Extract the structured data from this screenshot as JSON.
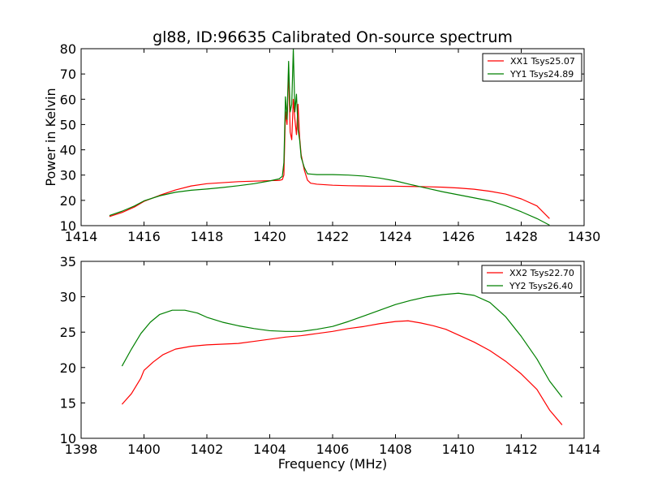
{
  "chart_data": [
    {
      "type": "line",
      "title": "gl88, ID:96635 Calibrated On-source spectrum",
      "xlabel": "",
      "ylabel": "Power in Kelvin",
      "xlim": [
        1414,
        1430
      ],
      "ylim": [
        10,
        80
      ],
      "xticks": [
        1414,
        1416,
        1418,
        1420,
        1422,
        1424,
        1426,
        1428,
        1430
      ],
      "yticks": [
        10,
        20,
        30,
        40,
        50,
        60,
        70,
        80
      ],
      "grid": false,
      "legend_position": "top-right",
      "series": [
        {
          "name": "XX1 Tsys25.07",
          "color": "#ff0000",
          "points": [
            [
              1414.9,
              13.6
            ],
            [
              1415.3,
              15.2
            ],
            [
              1415.7,
              17.4
            ],
            [
              1416.0,
              19.6
            ],
            [
              1416.5,
              22.0
            ],
            [
              1417.0,
              24.1
            ],
            [
              1417.5,
              25.7
            ],
            [
              1418.0,
              26.6
            ],
            [
              1418.5,
              27.0
            ],
            [
              1419.0,
              27.4
            ],
            [
              1419.5,
              27.6
            ],
            [
              1420.0,
              27.8
            ],
            [
              1420.3,
              27.9
            ],
            [
              1420.4,
              28.2
            ],
            [
              1420.45,
              30.0
            ],
            [
              1420.5,
              55.0
            ],
            [
              1420.55,
              50.0
            ],
            [
              1420.6,
              72.0
            ],
            [
              1420.65,
              47.0
            ],
            [
              1420.7,
              44.0
            ],
            [
              1420.75,
              60.0
            ],
            [
              1420.8,
              52.0
            ],
            [
              1420.85,
              46.0
            ],
            [
              1420.9,
              58.0
            ],
            [
              1420.95,
              45.0
            ],
            [
              1421.0,
              38.0
            ],
            [
              1421.1,
              32.0
            ],
            [
              1421.2,
              28.0
            ],
            [
              1421.3,
              26.8
            ],
            [
              1421.5,
              26.4
            ],
            [
              1422.0,
              26.0
            ],
            [
              1422.5,
              25.8
            ],
            [
              1423.0,
              25.7
            ],
            [
              1423.5,
              25.6
            ],
            [
              1424.0,
              25.6
            ],
            [
              1424.5,
              25.5
            ],
            [
              1425.0,
              25.4
            ],
            [
              1425.5,
              25.2
            ],
            [
              1426.0,
              24.9
            ],
            [
              1426.5,
              24.4
            ],
            [
              1427.0,
              23.6
            ],
            [
              1427.5,
              22.5
            ],
            [
              1428.0,
              20.6
            ],
            [
              1428.5,
              17.8
            ],
            [
              1428.9,
              12.8
            ]
          ]
        },
        {
          "name": "YY1 Tsys24.89",
          "color": "#008000",
          "points": [
            [
              1414.9,
              14.0
            ],
            [
              1415.3,
              15.7
            ],
            [
              1415.7,
              17.8
            ],
            [
              1416.0,
              19.8
            ],
            [
              1416.5,
              21.8
            ],
            [
              1417.0,
              23.2
            ],
            [
              1417.5,
              24.0
            ],
            [
              1418.0,
              24.5
            ],
            [
              1418.5,
              25.1
            ],
            [
              1419.0,
              25.8
            ],
            [
              1419.5,
              26.6
            ],
            [
              1420.0,
              27.7
            ],
            [
              1420.3,
              28.5
            ],
            [
              1420.4,
              29.5
            ],
            [
              1420.45,
              35.0
            ],
            [
              1420.5,
              61.0
            ],
            [
              1420.55,
              52.0
            ],
            [
              1420.6,
              75.0
            ],
            [
              1420.65,
              55.0
            ],
            [
              1420.7,
              58.0
            ],
            [
              1420.75,
              80.0
            ],
            [
              1420.8,
              55.0
            ],
            [
              1420.85,
              62.0
            ],
            [
              1420.9,
              48.0
            ],
            [
              1420.95,
              44.0
            ],
            [
              1421.0,
              37.0
            ],
            [
              1421.1,
              33.0
            ],
            [
              1421.2,
              30.5
            ],
            [
              1421.5,
              30.2
            ],
            [
              1422.0,
              30.2
            ],
            [
              1422.5,
              30.0
            ],
            [
              1423.0,
              29.6
            ],
            [
              1423.5,
              28.8
            ],
            [
              1424.0,
              27.7
            ],
            [
              1424.5,
              26.2
            ],
            [
              1425.0,
              24.8
            ],
            [
              1425.5,
              23.4
            ],
            [
              1426.0,
              22.2
            ],
            [
              1426.5,
              21.0
            ],
            [
              1427.0,
              19.8
            ],
            [
              1427.5,
              17.9
            ],
            [
              1428.0,
              15.5
            ],
            [
              1428.5,
              12.8
            ],
            [
              1428.9,
              10.2
            ]
          ]
        }
      ]
    },
    {
      "type": "line",
      "title": "",
      "xlabel": "Frequency (MHz)",
      "ylabel": "",
      "xlim": [
        1398,
        1414
      ],
      "ylim": [
        10,
        35
      ],
      "xticks": [
        1398,
        1400,
        1402,
        1404,
        1406,
        1408,
        1410,
        1412,
        1414
      ],
      "yticks": [
        10,
        15,
        20,
        25,
        30,
        35
      ],
      "grid": false,
      "legend_position": "top-right",
      "series": [
        {
          "name": "XX2 Tsys22.70",
          "color": "#ff0000",
          "points": [
            [
              1399.3,
              14.8
            ],
            [
              1399.6,
              16.3
            ],
            [
              1399.9,
              18.5
            ],
            [
              1400.0,
              19.6
            ],
            [
              1400.3,
              20.8
            ],
            [
              1400.6,
              21.8
            ],
            [
              1401.0,
              22.6
            ],
            [
              1401.5,
              23.0
            ],
            [
              1402.0,
              23.2
            ],
            [
              1402.5,
              23.3
            ],
            [
              1403.0,
              23.4
            ],
            [
              1403.5,
              23.7
            ],
            [
              1404.0,
              24.0
            ],
            [
              1404.5,
              24.3
            ],
            [
              1405.0,
              24.5
            ],
            [
              1405.5,
              24.8
            ],
            [
              1406.0,
              25.1
            ],
            [
              1406.5,
              25.5
            ],
            [
              1407.0,
              25.8
            ],
            [
              1407.5,
              26.2
            ],
            [
              1408.0,
              26.5
            ],
            [
              1408.4,
              26.6
            ],
            [
              1408.8,
              26.3
            ],
            [
              1409.2,
              25.9
            ],
            [
              1409.6,
              25.4
            ],
            [
              1410.0,
              24.6
            ],
            [
              1410.5,
              23.6
            ],
            [
              1411.0,
              22.4
            ],
            [
              1411.5,
              20.9
            ],
            [
              1412.0,
              19.1
            ],
            [
              1412.5,
              16.9
            ],
            [
              1412.9,
              14.0
            ],
            [
              1413.3,
              11.9
            ]
          ]
        },
        {
          "name": "YY2 Tsys26.40",
          "color": "#008000",
          "points": [
            [
              1399.3,
              20.2
            ],
            [
              1399.6,
              22.6
            ],
            [
              1399.9,
              24.8
            ],
            [
              1400.2,
              26.4
            ],
            [
              1400.5,
              27.5
            ],
            [
              1400.9,
              28.1
            ],
            [
              1401.3,
              28.1
            ],
            [
              1401.7,
              27.7
            ],
            [
              1402.0,
              27.1
            ],
            [
              1402.5,
              26.4
            ],
            [
              1403.0,
              25.9
            ],
            [
              1403.5,
              25.5
            ],
            [
              1404.0,
              25.2
            ],
            [
              1404.5,
              25.1
            ],
            [
              1405.0,
              25.1
            ],
            [
              1405.5,
              25.4
            ],
            [
              1406.0,
              25.8
            ],
            [
              1406.5,
              26.5
            ],
            [
              1407.0,
              27.3
            ],
            [
              1407.5,
              28.1
            ],
            [
              1408.0,
              28.9
            ],
            [
              1408.5,
              29.5
            ],
            [
              1409.0,
              30.0
            ],
            [
              1409.5,
              30.3
            ],
            [
              1410.0,
              30.5
            ],
            [
              1410.5,
              30.2
            ],
            [
              1411.0,
              29.2
            ],
            [
              1411.5,
              27.2
            ],
            [
              1412.0,
              24.4
            ],
            [
              1412.5,
              21.2
            ],
            [
              1412.9,
              18.1
            ],
            [
              1413.3,
              15.8
            ]
          ]
        }
      ]
    }
  ]
}
